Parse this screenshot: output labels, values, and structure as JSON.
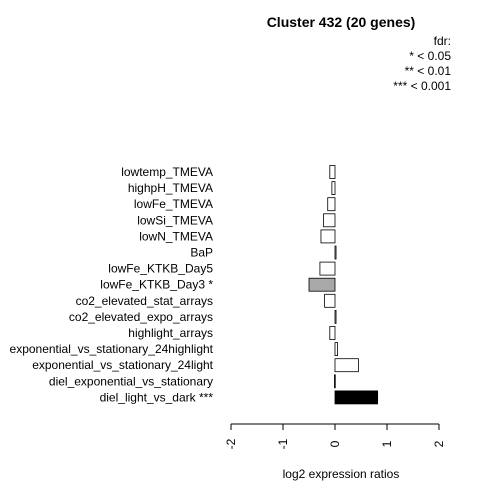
{
  "chart_data": {
    "type": "bar",
    "orientation": "horizontal",
    "title": "Cluster 432 (20 genes)",
    "xlabel": "log2 expression ratios",
    "ylabel": "",
    "xlim": [
      -2,
      2
    ],
    "xticks": [
      "-2",
      "-1",
      "0",
      "1",
      "2"
    ],
    "grid": false,
    "legend": {
      "placement": "top-right",
      "title": "fdr:",
      "entries": [
        "* < 0.05",
        "** < 0.01",
        "*** < 0.001"
      ]
    },
    "categories": [
      "lowtemp_TMEVA",
      "highpH_TMEVA",
      "lowFe_TMEVA",
      "lowSi_TMEVA",
      "lowN_TMEVA",
      "BaP",
      "lowFe_KTKB_Day5",
      "lowFe_KTKB_Day3 *",
      "co2_elevated_stat_arrays",
      "co2_elevated_expo_arrays",
      "highlight_arrays",
      "exponential_vs_stationary_24highlight",
      "exponential_vs_stationary_24light",
      "diel_exponential_vs_stationary",
      "diel_light_vs_dark ***"
    ],
    "values": [
      -0.1,
      -0.06,
      -0.14,
      -0.22,
      -0.27,
      0.02,
      -0.29,
      -0.5,
      -0.2,
      0.02,
      -0.1,
      0.05,
      0.45,
      -0.01,
      0.82
    ],
    "fill": [
      "#ffffff",
      "#ffffff",
      "#ffffff",
      "#ffffff",
      "#ffffff",
      "#ffffff",
      "#ffffff",
      "#a8a8a8",
      "#ffffff",
      "#ffffff",
      "#ffffff",
      "#ffffff",
      "#ffffff",
      "#ffffff",
      "#000000"
    ]
  }
}
